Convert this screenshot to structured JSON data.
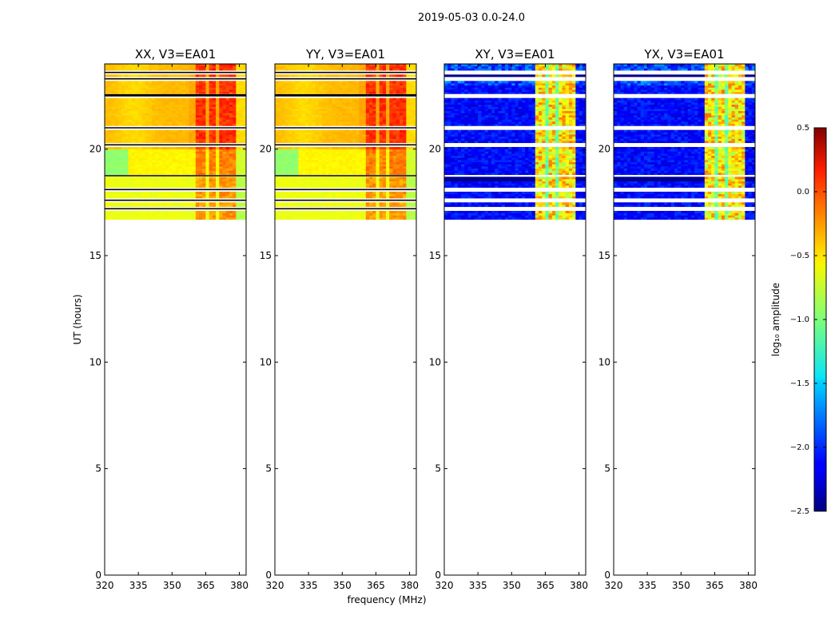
{
  "chart_data": {
    "type": "heatmap",
    "suptitle": "2019-05-03 0.0-24.0",
    "xlabel": "frequency (MHz)",
    "ylabel": "UT (hours)",
    "xlim": [
      320,
      383
    ],
    "ylim": [
      0,
      24
    ],
    "xticks": [
      320,
      335,
      350,
      365,
      380
    ],
    "yticks": [
      0,
      5,
      10,
      15,
      20
    ],
    "panels": [
      {
        "title": "XX, V3=EA01",
        "kind": "auto",
        "data_ut_range": [
          16.7,
          24.0
        ]
      },
      {
        "title": "YY, V3=EA01",
        "kind": "auto",
        "data_ut_range": [
          16.7,
          24.0
        ]
      },
      {
        "title": "XY, V3=EA01",
        "kind": "cross",
        "data_ut_range": [
          16.7,
          24.0
        ]
      },
      {
        "title": "YX, V3=EA01",
        "kind": "cross",
        "data_ut_range": [
          16.7,
          24.0
        ]
      }
    ],
    "gaps_ut": [
      22.5,
      22.55,
      21.0,
      20.2,
      18.75,
      18.1,
      17.6,
      17.2,
      23.3,
      23.6
    ],
    "rfi_bands_mhz": [
      [
        360,
        363
      ],
      [
        363.5,
        365
      ],
      [
        366,
        369
      ],
      [
        370.5,
        372
      ],
      [
        373,
        377
      ],
      [
        377.5,
        379
      ]
    ],
    "colorbar": {
      "label": "log₁₀ amplitude",
      "range": [
        -2.5,
        0.5
      ],
      "ticks": [
        "0.5",
        "0.0",
        "−0.5",
        "−1.0",
        "−1.5",
        "−2.0",
        "−2.5"
      ],
      "tick_values": [
        0.5,
        0.0,
        -0.5,
        -1.0,
        -1.5,
        -2.0,
        -2.5
      ],
      "colormap": "jet"
    }
  }
}
